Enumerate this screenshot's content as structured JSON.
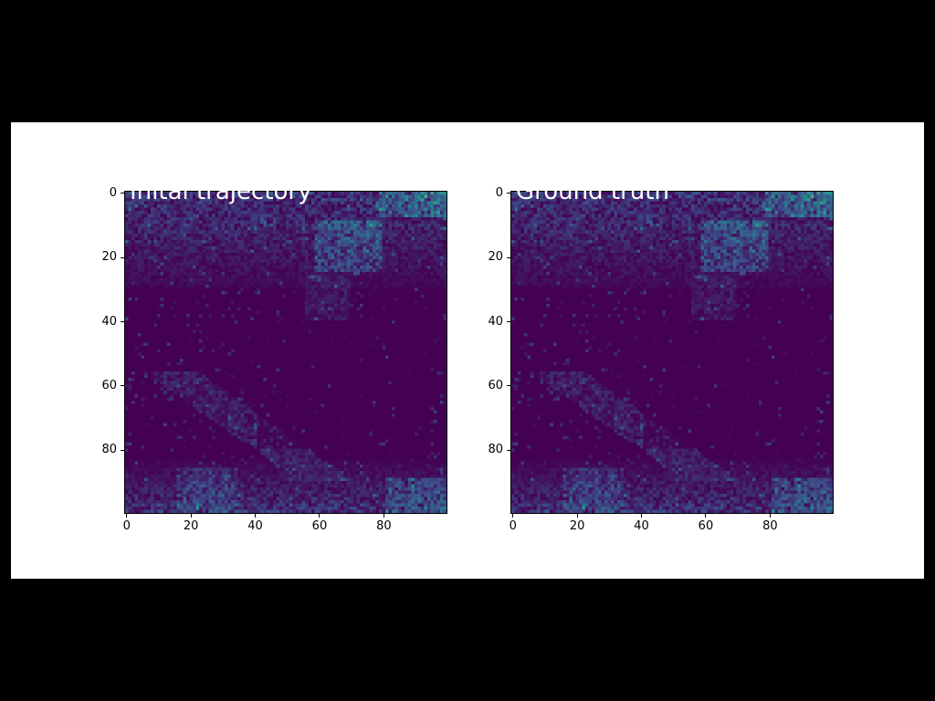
{
  "chart_data": [
    {
      "type": "heatmap",
      "title": "Inital trajectory",
      "xlabel": "",
      "ylabel": "",
      "xlim": [
        0,
        99
      ],
      "ylim": [
        99,
        0
      ],
      "xticks": [
        "0",
        "20",
        "40",
        "60",
        "80"
      ],
      "yticks": [
        "0",
        "20",
        "40",
        "60",
        "80"
      ],
      "colormap": "viridis",
      "grid": false
    },
    {
      "type": "heatmap",
      "title": "Ground truth",
      "xlabel": "",
      "ylabel": "",
      "xlim": [
        0,
        99
      ],
      "ylim": [
        99,
        0
      ],
      "xticks": [
        "0",
        "20",
        "40",
        "60",
        "80"
      ],
      "yticks": [
        "0",
        "20",
        "40",
        "60",
        "80"
      ],
      "colormap": "viridis",
      "grid": false
    }
  ],
  "colors": {
    "background": "#000000",
    "figure": "#ffffff",
    "low": "#440154",
    "mid": "#31688e",
    "high": "#35b779"
  }
}
